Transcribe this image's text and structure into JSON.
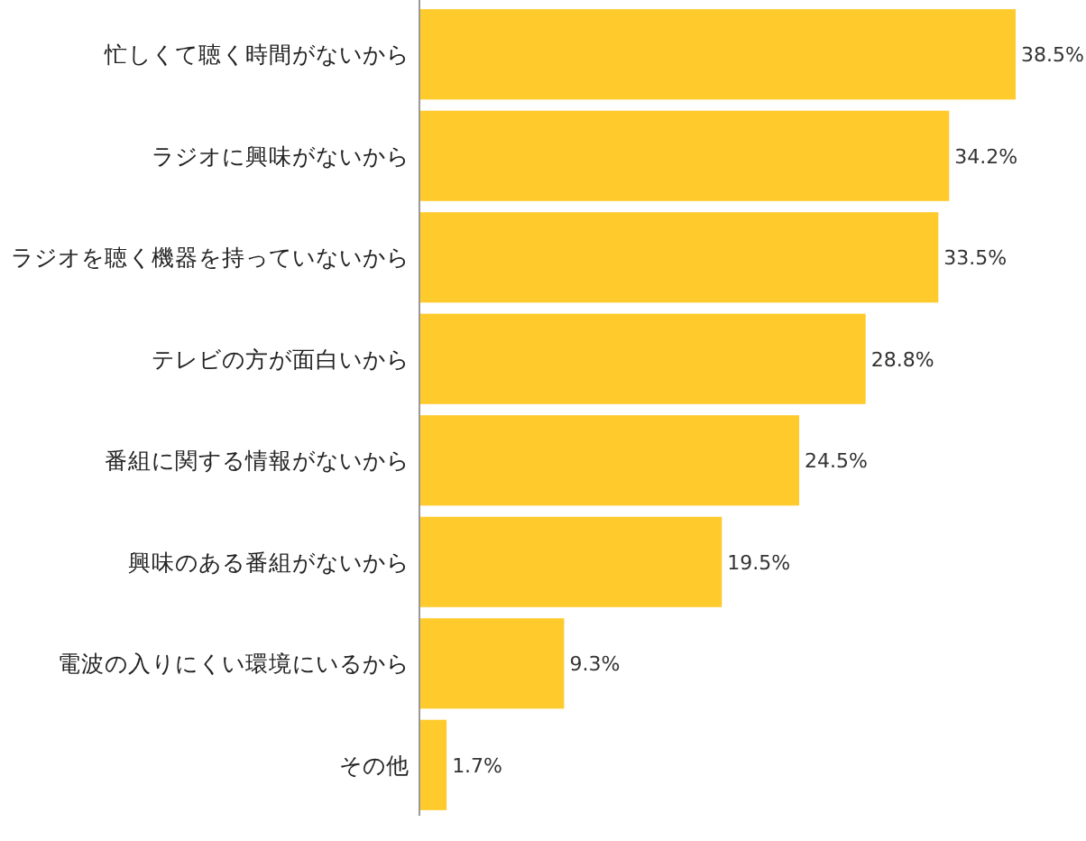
{
  "chart_data": {
    "type": "bar",
    "orientation": "horizontal",
    "color": "#ffca2b",
    "categories": [
      "忙しくて聴く時間がないから",
      "ラジオに興味がないから",
      "ラジオを聴く機器を持っていないから",
      "テレビの方が面白いから",
      "番組に関する情報がないから",
      "興味のある番組がないから",
      "電波の入りにくい環境にいるから",
      "その他"
    ],
    "values": [
      38.5,
      34.2,
      33.5,
      28.8,
      24.5,
      19.5,
      9.3,
      1.7
    ],
    "value_labels": [
      "38.5%",
      "34.2%",
      "33.5%",
      "28.8%",
      "24.5%",
      "19.5%",
      "9.3%",
      "1.7%"
    ]
  }
}
